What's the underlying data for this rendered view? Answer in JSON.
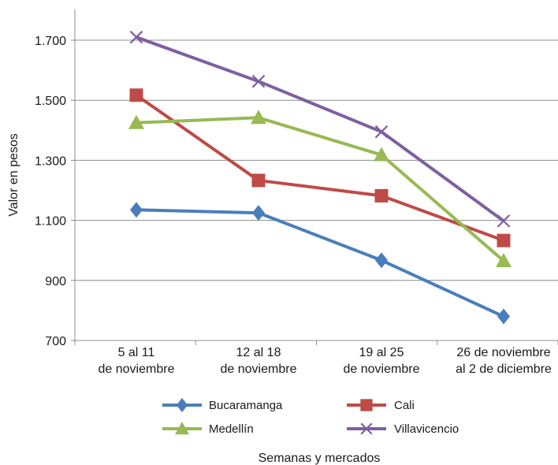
{
  "chart_data": {
    "type": "line",
    "title": "",
    "xlabel": "Semanas y mercados",
    "ylabel": "Valor en pesos",
    "categories": [
      [
        "5 al 11",
        "de noviembre"
      ],
      [
        "12 al 18",
        "de noviembre"
      ],
      [
        "19 al 25",
        "de noviembre"
      ],
      [
        "26 de noviembre",
        "al 2 de diciembre"
      ]
    ],
    "ylim": [
      700,
      1800
    ],
    "yticks": [
      700,
      900,
      1100,
      1300,
      1500,
      1700
    ],
    "ytick_labels": [
      "700",
      "900",
      "1.100",
      "1.300",
      "1.500",
      "1.700"
    ],
    "grid": "horizontal",
    "legend_position": "bottom",
    "series": [
      {
        "name": "Bucaramanga",
        "color": "#4a7ebb",
        "marker": "diamond",
        "values": [
          1135,
          1125,
          967,
          780
        ]
      },
      {
        "name": "Cali",
        "color": "#be4b48",
        "marker": "square",
        "values": [
          1517,
          1233,
          1182,
          1033
        ]
      },
      {
        "name": "Medellín",
        "color": "#98b954",
        "marker": "triangle",
        "values": [
          1425,
          1442,
          1318,
          965
        ]
      },
      {
        "name": "Villavicencio",
        "color": "#7d60a0",
        "marker": "x",
        "values": [
          1710,
          1563,
          1395,
          1098
        ]
      }
    ]
  }
}
